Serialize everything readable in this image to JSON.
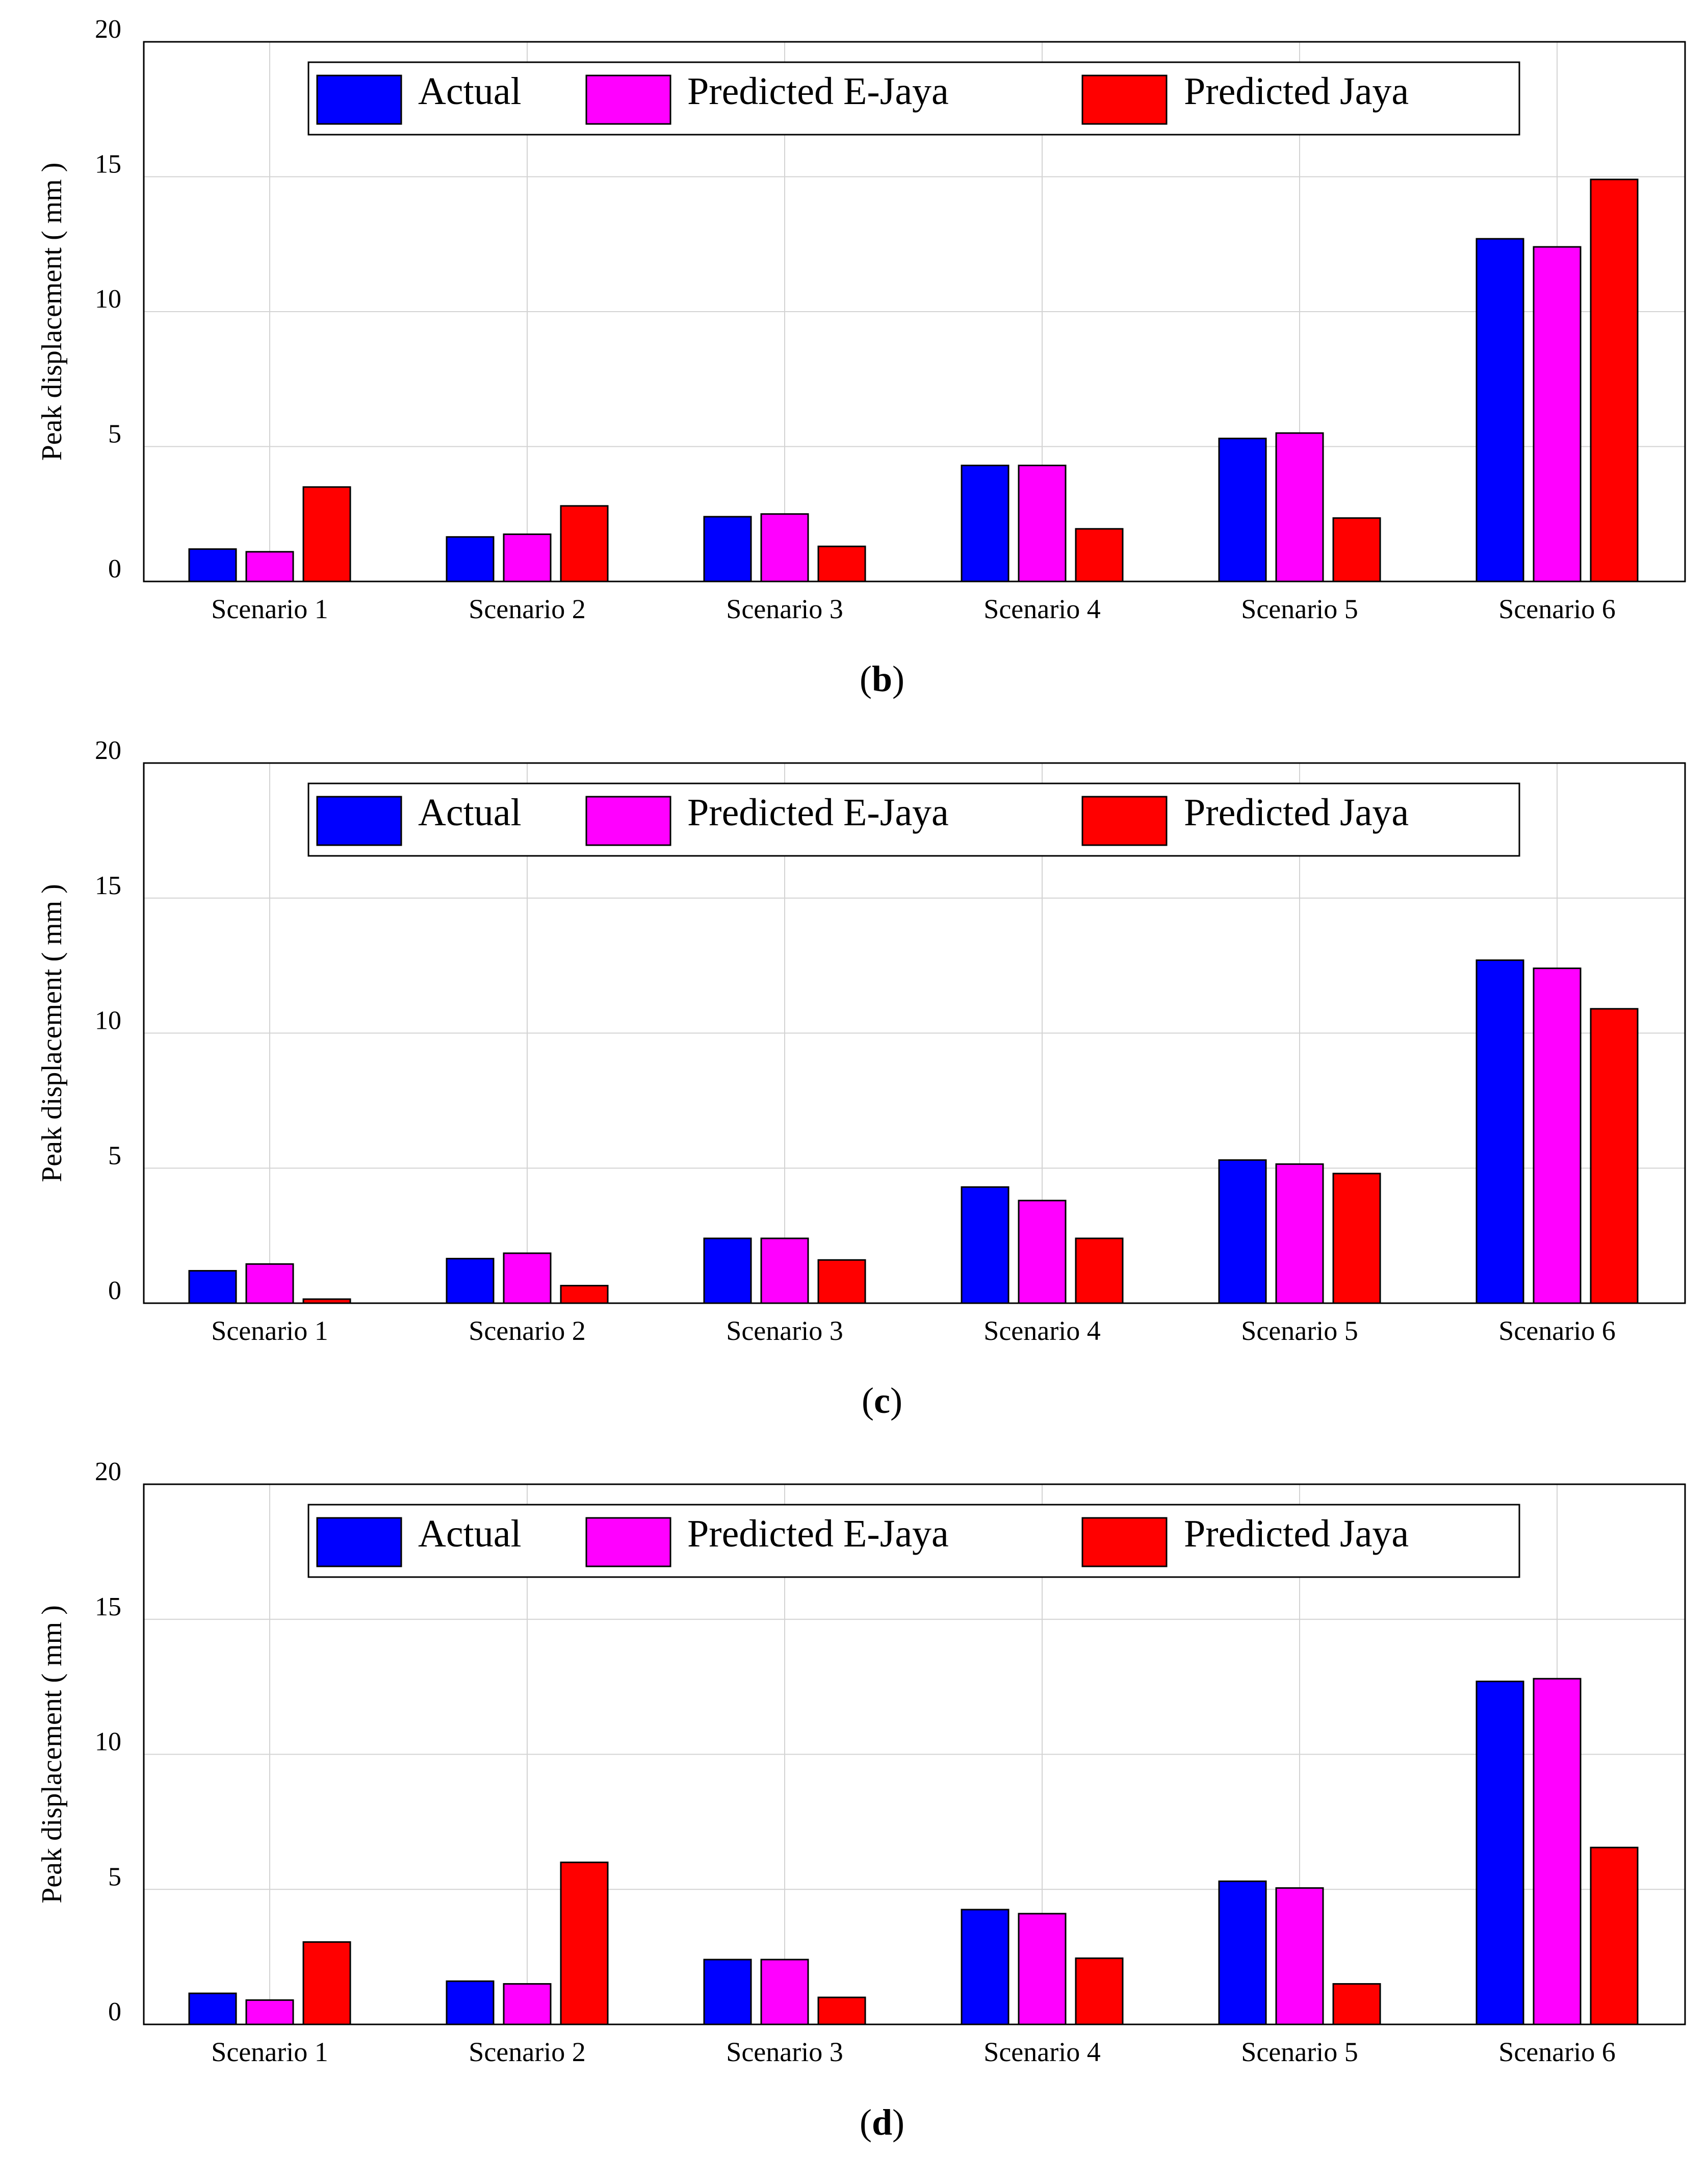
{
  "chart_data": [
    {
      "type": "bar",
      "panel_label": "b",
      "ylabel": "Peak displacement ( mm )",
      "xlabel": "",
      "ylim": [
        0,
        20
      ],
      "yticks": [
        0,
        5,
        10,
        15,
        20
      ],
      "grid": true,
      "legend_position": "top",
      "categories": [
        "Scenario 1",
        "Scenario 2",
        "Scenario 3",
        "Scenario 4",
        "Scenario 5",
        "Scenario 6"
      ],
      "series": [
        {
          "name": "Actual",
          "color": "#0000ff",
          "values": [
            1.2,
            1.65,
            2.4,
            4.3,
            5.3,
            12.7
          ]
        },
        {
          "name": "Predicted E-Jaya",
          "color": "#ff00ff",
          "values": [
            1.1,
            1.75,
            2.5,
            4.3,
            5.5,
            12.4
          ]
        },
        {
          "name": "Predicted Jaya",
          "color": "#ff0000",
          "values": [
            3.5,
            2.8,
            1.3,
            1.95,
            2.35,
            14.9
          ]
        }
      ]
    },
    {
      "type": "bar",
      "panel_label": "c",
      "ylabel": "Peak displacement ( mm )",
      "xlabel": "",
      "ylim": [
        0,
        20
      ],
      "yticks": [
        0,
        5,
        10,
        15,
        20
      ],
      "grid": true,
      "legend_position": "top",
      "categories": [
        "Scenario 1",
        "Scenario 2",
        "Scenario 3",
        "Scenario 4",
        "Scenario 5",
        "Scenario 6"
      ],
      "series": [
        {
          "name": "Actual",
          "color": "#0000ff",
          "values": [
            1.2,
            1.65,
            2.4,
            4.3,
            5.3,
            12.7
          ]
        },
        {
          "name": "Predicted E-Jaya",
          "color": "#ff00ff",
          "values": [
            1.45,
            1.85,
            2.4,
            3.8,
            5.15,
            12.4
          ]
        },
        {
          "name": "Predicted Jaya",
          "color": "#ff0000",
          "values": [
            0.15,
            0.65,
            1.6,
            2.4,
            4.8,
            10.9
          ]
        }
      ]
    },
    {
      "type": "bar",
      "panel_label": "d",
      "ylabel": "Peak displacement ( mm )",
      "xlabel": "",
      "ylim": [
        0,
        20
      ],
      "yticks": [
        0,
        5,
        10,
        15,
        20
      ],
      "grid": true,
      "legend_position": "top",
      "categories": [
        "Scenario 1",
        "Scenario 2",
        "Scenario 3",
        "Scenario 4",
        "Scenario 5",
        "Scenario 6"
      ],
      "series": [
        {
          "name": "Actual",
          "color": "#0000ff",
          "values": [
            1.15,
            1.6,
            2.4,
            4.25,
            5.3,
            12.7
          ]
        },
        {
          "name": "Predicted E-Jaya",
          "color": "#ff00ff",
          "values": [
            0.9,
            1.5,
            2.4,
            4.1,
            5.05,
            12.8
          ]
        },
        {
          "name": "Predicted Jaya",
          "color": "#ff0000",
          "values": [
            3.05,
            6.0,
            1.0,
            2.45,
            1.5,
            6.55
          ]
        }
      ]
    }
  ]
}
